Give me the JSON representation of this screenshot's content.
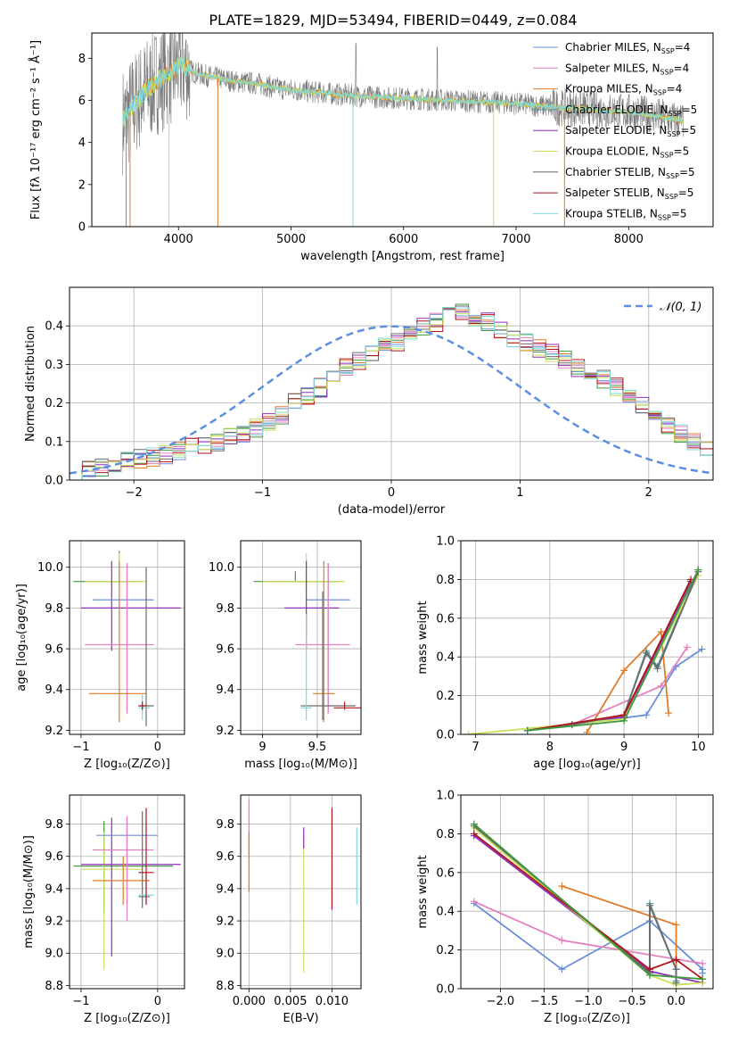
{
  "figure_title": "PLATE=1829, MJD=53494, FIBERID=0449, z=0.084",
  "colors": {
    "blue": "#6a8fd8",
    "pink": "#e77fbf",
    "orange": "#e07b2a",
    "teal": "#4f9aa0",
    "purple": "#8e2fb8",
    "yellowgreen": "#c8e05a",
    "gray": "#6a6a6a",
    "darkred": "#b0141c",
    "cyan": "#7fd8dc",
    "green": "#3f9a3f",
    "normal": "#5b8fe0"
  },
  "chart_data": [
    {
      "id": "spectrum",
      "type": "line",
      "title": "PLATE=1829, MJD=53494, FIBERID=0449, z=0.084",
      "xlabel": "wavelength [Angstrom, rest frame]",
      "ylabel": "Flux [fλ 10⁻¹⁷ erg cm⁻² s⁻¹ Å⁻¹]",
      "xlim": [
        3230,
        8750
      ],
      "ylim": [
        0,
        9.2
      ],
      "xticks": [
        4000,
        5000,
        6000,
        7000,
        8000
      ],
      "yticks": [
        0,
        2,
        4,
        6,
        8
      ],
      "grid": false,
      "legend_position": "upper-right",
      "legend": [
        "Chabrier MILES, N_SSP=4",
        "Salpeter MILES, N_SSP=4",
        "Kroupa MILES, N_SSP=4",
        "Chabrier ELODIE, N_SSP=5",
        "Salpeter ELODIE, N_SSP=5",
        "Kroupa ELODIE, N_SSP=5",
        "Chabrier STELIB, N_SSP=5",
        "Salpeter STELIB, N_SSP=5",
        "Kroupa STELIB, N_SSP=5"
      ],
      "model_continuum": {
        "x": [
          3500,
          3560,
          3620,
          3700,
          3800,
          3900,
          3960,
          4000,
          4050,
          4150,
          4300,
          4500,
          4700,
          4860,
          5000,
          5200,
          5400,
          5600,
          5800,
          6000,
          6200,
          6400,
          6600,
          6800,
          7000,
          7200,
          7400,
          7600,
          7800,
          8000,
          8200,
          8400,
          8500
        ],
        "y": [
          5.0,
          5.4,
          5.9,
          6.4,
          6.9,
          7.2,
          7.4,
          7.7,
          7.6,
          7.3,
          7.1,
          6.9,
          6.8,
          6.6,
          6.5,
          6.4,
          6.3,
          6.2,
          6.15,
          6.1,
          6.05,
          6.0,
          5.95,
          5.9,
          5.85,
          5.75,
          5.65,
          5.6,
          5.5,
          5.45,
          5.3,
          5.1,
          5.0
        ]
      },
      "observed_note": "noisy gray observed spectrum around model"
    },
    {
      "id": "residuals",
      "type": "histogram",
      "xlabel": "(data-model)/error",
      "ylabel": "Normed distribution",
      "xlim": [
        -2.5,
        2.5
      ],
      "ylim": [
        0,
        0.5
      ],
      "xticks": [
        -2,
        -1,
        0,
        1,
        2
      ],
      "yticks": [
        0.0,
        0.1,
        0.2,
        0.3,
        0.4
      ],
      "grid": true,
      "legend_position": "upper-right",
      "legend": [
        "𝒩(0, 1)"
      ],
      "bin_width": 0.1,
      "bin_start": -2.5,
      "base_profile": [
        0.02,
        0.03,
        0.035,
        0.04,
        0.05,
        0.055,
        0.06,
        0.065,
        0.075,
        0.085,
        0.09,
        0.1,
        0.11,
        0.12,
        0.135,
        0.15,
        0.17,
        0.2,
        0.22,
        0.24,
        0.26,
        0.29,
        0.31,
        0.33,
        0.35,
        0.36,
        0.38,
        0.395,
        0.41,
        0.43,
        0.44,
        0.42,
        0.41,
        0.39,
        0.37,
        0.36,
        0.34,
        0.33,
        0.31,
        0.29,
        0.27,
        0.26,
        0.24,
        0.21,
        0.19,
        0.17,
        0.14,
        0.12,
        0.1,
        0.08,
        0.065,
        0.055,
        0.045,
        0.04,
        0.035,
        0.03,
        0.025,
        0.022,
        0.02,
        0.018
      ]
    },
    {
      "id": "age_vs_Z",
      "type": "scatter",
      "xlabel": "Z [log₁₀(Z/Z⊙)]",
      "ylabel": "age  [log₁₀(age/yr)]",
      "xlim": [
        -1.15,
        0.35
      ],
      "ylim": [
        9.18,
        10.13
      ],
      "xticks": [
        -1,
        0
      ],
      "yticks": [
        9.2,
        9.4,
        9.6,
        9.8,
        10.0
      ],
      "grid": true,
      "crosses": [
        {
          "c": "green",
          "x": -0.5,
          "xerr": [
            0.6,
            0.3
          ],
          "y": 9.93,
          "yerr": [
            0.0,
            0.0
          ],
          "vy": [
            9.93,
            10.08
          ]
        },
        {
          "c": "yellowgreen",
          "x": -0.5,
          "xerr": [
            0.45,
            0.35
          ],
          "y": 9.93,
          "yerr": [
            0.0,
            0.0
          ],
          "vy": [
            9.66,
            10.07
          ]
        },
        {
          "c": "purple",
          "x": -0.6,
          "xerr": [
            0.4,
            0.9
          ],
          "y": 9.8,
          "yerr": [
            0.0,
            0.0
          ],
          "vy": [
            9.59,
            10.03
          ]
        },
        {
          "c": "blue",
          "x": -0.4,
          "xerr": [
            0.45,
            0.35
          ],
          "y": 9.84,
          "yerr": [
            0.0,
            0.0
          ],
          "vy": [
            9.3,
            10.02
          ]
        },
        {
          "c": "pink",
          "x": -0.4,
          "xerr": [
            0.55,
            0.35
          ],
          "y": 9.62,
          "yerr": [
            0.0,
            0.0
          ],
          "vy": [
            9.28,
            10.02
          ]
        },
        {
          "c": "orange",
          "x": -0.5,
          "xerr": [
            0.4,
            0.35
          ],
          "y": 9.38,
          "yerr": [
            0.0,
            0.0
          ],
          "vy": [
            9.24,
            10.03
          ]
        },
        {
          "c": "gray",
          "x": -0.15,
          "xerr": [
            0.1,
            0.1
          ],
          "y": 9.32,
          "yerr": [
            0.0,
            0.0
          ],
          "vy": [
            9.22,
            10.0
          ]
        },
        {
          "c": "cyan",
          "x": -0.2,
          "xerr": [
            0.05,
            0.1
          ],
          "y": 9.31,
          "yerr": [
            0.0,
            0.0
          ],
          "vy": [
            9.25,
            9.38
          ]
        },
        {
          "c": "darkred",
          "x": -0.2,
          "xerr": [
            0.05,
            0.05
          ],
          "y": 9.32,
          "yerr": [
            0.0,
            0.0
          ],
          "vy": [
            9.3,
            9.34
          ]
        }
      ]
    },
    {
      "id": "age_vs_mass",
      "type": "scatter",
      "xlabel": "mass [log₁₀(M/M⊙)]",
      "ylabel": "",
      "xlim": [
        8.8,
        9.9
      ],
      "ylim": [
        9.18,
        10.13
      ],
      "xticks": [
        9.0,
        9.5
      ],
      "yticks": [
        9.2,
        9.4,
        9.6,
        9.8,
        10.0
      ],
      "grid": true,
      "crosses": [
        {
          "c": "green",
          "x": 9.3,
          "xerr": [
            0.38,
            0.42
          ],
          "y": 9.93,
          "vy": [
            9.93,
            9.98
          ]
        },
        {
          "c": "yellowgreen",
          "x": 9.4,
          "xerr": [
            0.4,
            0.35
          ],
          "y": 9.93,
          "vy": [
            9.66,
            10.07
          ]
        },
        {
          "c": "purple",
          "x": 9.4,
          "xerr": [
            0.2,
            0.3
          ],
          "y": 9.8,
          "vy": [
            9.59,
            10.03
          ]
        },
        {
          "c": "blue",
          "x": 9.6,
          "xerr": [
            0.2,
            0.2
          ],
          "y": 9.84,
          "vy": [
            9.3,
            10.02
          ]
        },
        {
          "c": "pink",
          "x": 9.6,
          "xerr": [
            0.3,
            0.2
          ],
          "y": 9.62,
          "vy": [
            9.28,
            10.02
          ]
        },
        {
          "c": "orange",
          "x": 9.56,
          "xerr": [
            0.1,
            0.1
          ],
          "y": 9.38,
          "vy": [
            9.24,
            10.03
          ]
        },
        {
          "c": "gray",
          "x": 9.55,
          "xerr": [
            0.2,
            0.3
          ],
          "y": 9.32,
          "vy": [
            9.25,
            9.88
          ]
        },
        {
          "c": "darkred",
          "x": 9.75,
          "xerr": [
            0.1,
            0.2
          ],
          "y": 9.31,
          "vy": [
            9.3,
            9.34
          ]
        },
        {
          "c": "cyan",
          "x": 9.4,
          "xerr": [
            0.05,
            0.05
          ],
          "y": 9.31,
          "vy": [
            9.25,
            9.77
          ]
        }
      ]
    },
    {
      "id": "massweight_vs_age",
      "type": "line",
      "xlabel": "age  [log₁₀(age/yr)]",
      "ylabel": "mass weight",
      "xlim": [
        6.8,
        10.2
      ],
      "ylim": [
        0,
        1.0
      ],
      "xticks": [
        7,
        8,
        9,
        10
      ],
      "yticks": [
        0.0,
        0.2,
        0.4,
        0.6,
        0.8,
        1.0
      ],
      "grid": true,
      "series": [
        {
          "c": "blue",
          "x": [
            7.7,
            8.3,
            9.3,
            9.7,
            10.05
          ],
          "y": [
            0.02,
            0.05,
            0.1,
            0.35,
            0.44
          ]
        },
        {
          "c": "pink",
          "x": [
            7.7,
            8.3,
            9.5,
            9.85
          ],
          "y": [
            0.02,
            0.05,
            0.25,
            0.45
          ]
        },
        {
          "c": "orange",
          "x": [
            8.5,
            9.0,
            9.5,
            9.6
          ],
          "y": [
            0.01,
            0.33,
            0.53,
            0.11
          ]
        },
        {
          "c": "teal",
          "x": [
            7.7,
            8.3,
            9.0,
            9.3,
            9.45,
            10.0
          ],
          "y": [
            0.02,
            0.05,
            0.1,
            0.43,
            0.35,
            0.85
          ]
        },
        {
          "c": "purple",
          "x": [
            7.7,
            9.0,
            9.9
          ],
          "y": [
            0.02,
            0.09,
            0.79
          ]
        },
        {
          "c": "yellowgreen",
          "x": [
            6.9,
            9.0,
            10.0
          ],
          "y": [
            0.0,
            0.08,
            0.82
          ]
        },
        {
          "c": "gray",
          "x": [
            7.7,
            8.3,
            9.0,
            9.3,
            9.45,
            10.0
          ],
          "y": [
            0.02,
            0.05,
            0.1,
            0.42,
            0.34,
            0.84
          ]
        },
        {
          "c": "darkred",
          "x": [
            7.7,
            9.0,
            9.9
          ],
          "y": [
            0.02,
            0.1,
            0.8
          ]
        },
        {
          "c": "green",
          "x": [
            7.7,
            9.0,
            10.0
          ],
          "y": [
            0.02,
            0.07,
            0.85
          ]
        }
      ]
    },
    {
      "id": "mass_vs_Z",
      "type": "scatter",
      "xlabel": "Z [log₁₀(Z/Z⊙)]",
      "ylabel": "mass [log₁₀(M/M⊙)]",
      "xlim": [
        -1.15,
        0.35
      ],
      "ylim": [
        8.78,
        9.98
      ],
      "xticks": [
        -1,
        0
      ],
      "yticks": [
        8.8,
        9.0,
        9.2,
        9.4,
        9.6,
        9.8
      ],
      "grid": true,
      "crosses": [
        {
          "c": "green",
          "x": -0.7,
          "xerr": [
            0.4,
            0.9
          ],
          "y": 9.54,
          "vy": [
            9.25,
            9.82
          ]
        },
        {
          "c": "yellowgreen",
          "x": -0.7,
          "xerr": [
            0.3,
            0.5
          ],
          "y": 9.52,
          "vy": [
            8.9,
            9.75
          ]
        },
        {
          "c": "purple",
          "x": -0.6,
          "xerr": [
            0.4,
            0.9
          ],
          "y": 9.55,
          "vy": [
            8.98,
            9.84
          ]
        },
        {
          "c": "blue",
          "x": -0.4,
          "xerr": [
            0.4,
            0.4
          ],
          "y": 9.73,
          "vy": [
            9.3,
            9.85
          ]
        },
        {
          "c": "pink",
          "x": -0.4,
          "xerr": [
            0.45,
            0.35
          ],
          "y": 9.64,
          "vy": [
            9.2,
            9.85
          ]
        },
        {
          "c": "orange",
          "x": -0.45,
          "xerr": [
            0.4,
            0.35
          ],
          "y": 9.45,
          "vy": [
            9.3,
            9.6
          ]
        },
        {
          "c": "gray",
          "x": -0.2,
          "xerr": [
            0.05,
            0.1
          ],
          "y": 9.35,
          "vy": [
            9.28,
            9.88
          ]
        },
        {
          "c": "cyan",
          "x": -0.15,
          "xerr": [
            0.1,
            0.1
          ],
          "y": 9.36,
          "vy": [
            9.3,
            9.5
          ]
        },
        {
          "c": "darkred",
          "x": -0.15,
          "xerr": [
            0.1,
            0.1
          ],
          "y": 9.5,
          "vy": [
            9.3,
            9.9
          ]
        }
      ]
    },
    {
      "id": "mass_vs_ebv",
      "type": "scatter",
      "xlabel": "E(B-V)",
      "ylabel": "",
      "xlim": [
        -0.001,
        0.0135
      ],
      "ylim": [
        8.78,
        9.98
      ],
      "xticks": [
        0.0,
        0.005,
        0.01
      ],
      "xticklabels": [
        "0.000",
        "0.005",
        "0.010"
      ],
      "yticks": [
        8.8,
        9.0,
        9.2,
        9.4,
        9.6,
        9.8
      ],
      "grid": true,
      "vlines": [
        {
          "c": "pink",
          "x": 0.0,
          "y": [
            9.6,
            9.95
          ]
        },
        {
          "c": "orange",
          "x": 0.0,
          "y": [
            9.38,
            9.75
          ]
        },
        {
          "c": "yellowgreen",
          "x": 0.0066,
          "y": [
            8.88,
            9.72
          ]
        },
        {
          "c": "purple",
          "x": 0.0066,
          "y": [
            9.65,
            9.78
          ]
        },
        {
          "c": "darkred",
          "x": 0.01,
          "y": [
            9.27,
            9.9
          ]
        },
        {
          "c": "cyan",
          "x": 0.013,
          "y": [
            9.3,
            9.78
          ]
        }
      ]
    },
    {
      "id": "massweight_vs_Z",
      "type": "line",
      "xlabel": "Z [log₁₀(Z/Z⊙)]",
      "ylabel": "mass weight",
      "xlim": [
        -2.45,
        0.42
      ],
      "ylim": [
        0,
        1.0
      ],
      "xticks": [
        -2.0,
        -1.5,
        -1.0,
        -0.5,
        0.0
      ],
      "xticklabels": [
        "−2.0",
        "−1.5",
        "−1.0",
        "−0.5",
        "0.0"
      ],
      "yticks": [
        0.0,
        0.2,
        0.4,
        0.6,
        0.8,
        1.0
      ],
      "grid": true,
      "series": [
        {
          "c": "blue",
          "x": [
            -2.3,
            -1.3,
            -0.3,
            0.3,
            0.3
          ],
          "y": [
            0.44,
            0.1,
            0.35,
            0.1,
            0.08
          ]
        },
        {
          "c": "pink",
          "x": [
            -2.3,
            -1.3,
            0.3
          ],
          "y": [
            0.45,
            0.25,
            0.13
          ]
        },
        {
          "c": "orange",
          "x": [
            -1.3,
            0.0,
            0.0
          ],
          "y": [
            0.53,
            0.33,
            0.02
          ]
        },
        {
          "c": "teal",
          "x": [
            -2.3,
            -0.3,
            -0.3,
            0.0,
            0.0
          ],
          "y": [
            0.85,
            0.07,
            0.44,
            0.1,
            0.04
          ]
        },
        {
          "c": "purple",
          "x": [
            -2.3,
            -0.3,
            0.3
          ],
          "y": [
            0.79,
            0.09,
            0.03
          ]
        },
        {
          "c": "yellowgreen",
          "x": [
            -2.3,
            -0.3,
            0.0,
            0.3
          ],
          "y": [
            0.83,
            0.07,
            0.02,
            0.03
          ]
        },
        {
          "c": "gray",
          "x": [
            -2.3,
            -0.3,
            -0.3,
            0.0,
            0.0
          ],
          "y": [
            0.84,
            0.08,
            0.43,
            0.1,
            0.03
          ]
        },
        {
          "c": "darkred",
          "x": [
            -2.3,
            -0.3,
            0.0,
            0.3
          ],
          "y": [
            0.8,
            0.1,
            0.15,
            0.05
          ]
        },
        {
          "c": "green",
          "x": [
            -2.3,
            -0.3,
            0.3
          ],
          "y": [
            0.85,
            0.07,
            0.05
          ]
        }
      ]
    }
  ]
}
